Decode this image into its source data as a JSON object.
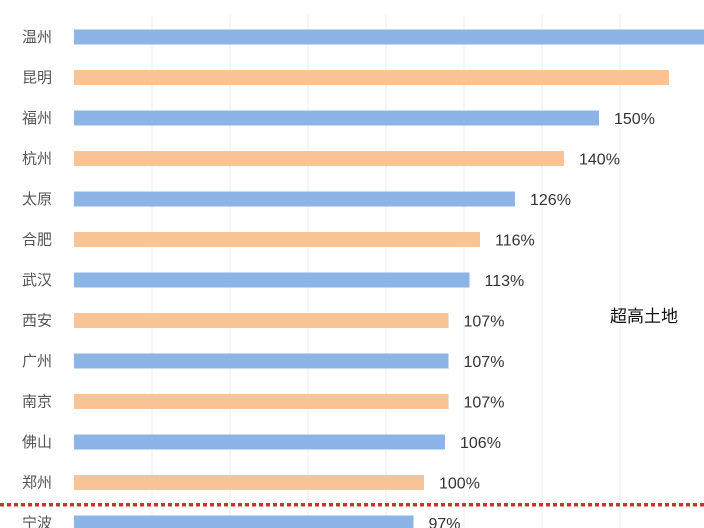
{
  "chart_data": {
    "type": "bar",
    "orientation": "horizontal",
    "categories": [
      "温州",
      "昆明",
      "福州",
      "杭州",
      "太原",
      "合肥",
      "武汉",
      "西安",
      "广州",
      "南京",
      "佛山",
      "郑州",
      "宁波"
    ],
    "values": [
      {
        "v": 180,
        "label": ""
      },
      {
        "v": 170,
        "label": ""
      },
      {
        "v": 150,
        "label": "150%"
      },
      {
        "v": 140,
        "label": "140%"
      },
      {
        "v": 126,
        "label": "126%"
      },
      {
        "v": 116,
        "label": "116%"
      },
      {
        "v": 113,
        "label": "113%"
      },
      {
        "v": 107,
        "label": "107%"
      },
      {
        "v": 107,
        "label": "107%"
      },
      {
        "v": 107,
        "label": "107%"
      },
      {
        "v": 106,
        "label": "106%"
      },
      {
        "v": 100,
        "label": "100%"
      },
      {
        "v": 97,
        "label": "97%"
      }
    ],
    "colors": [
      "#8db4e6",
      "#fac497"
    ],
    "threshold_line_color": "#c0392b",
    "threshold_after_category": "郑州",
    "annotation": "超高土地",
    "xlim": [
      0,
      180
    ],
    "grid": true,
    "title": "",
    "xlabel": "",
    "ylabel": ""
  }
}
